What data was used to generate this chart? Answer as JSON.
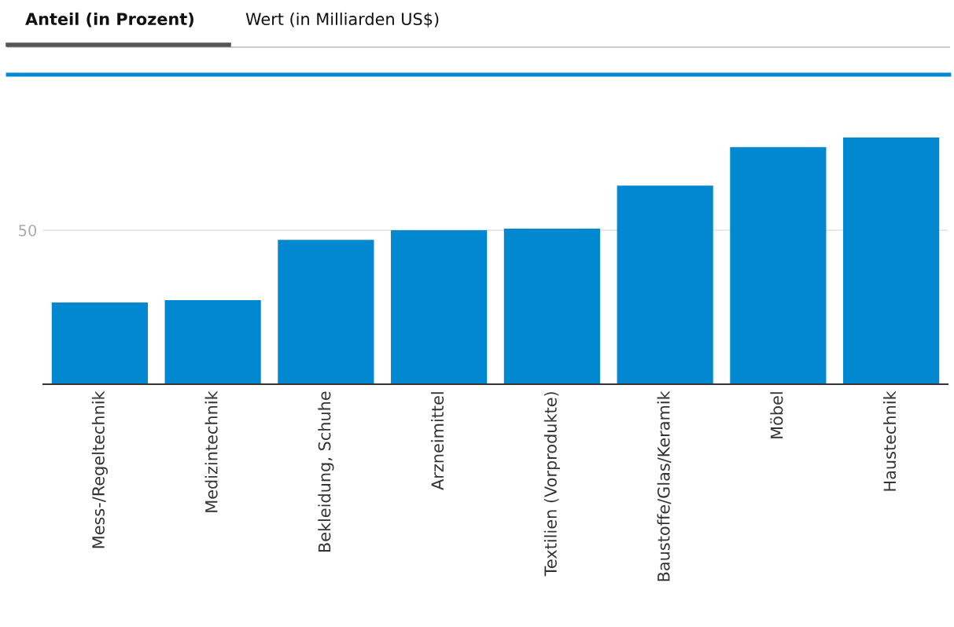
{
  "chart_data": {
    "type": "bar",
    "title": "Anteil (in Prozent)",
    "subtitle": "Wert (in Milliarden US$)",
    "categories": [
      "Mess-/Regeltechnik",
      "Medizintechnik",
      "Bekleidung, Schuhe",
      "Arzneimittel",
      "Textilien (Vorprodukte)",
      "Baustoffe/Glas/Keramik",
      "Möbel",
      "Haustechnik"
    ],
    "values": [
      26.5,
      27.3,
      46.9,
      50.0,
      50.5,
      64.5,
      77.0,
      80.1
    ],
    "color": "#0288d1",
    "ylim": [
      0,
      80.1
    ],
    "yticks": [
      50
    ],
    "grid": "y"
  }
}
